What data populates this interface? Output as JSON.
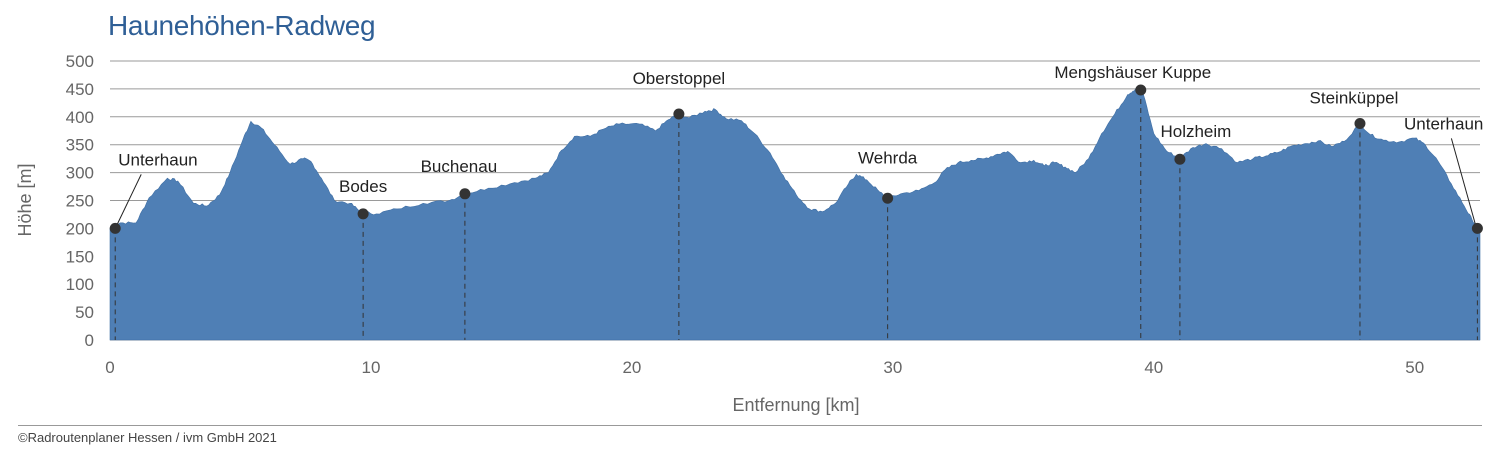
{
  "chart_data": {
    "type": "area",
    "title": "Haunehöhen-Radweg",
    "xlabel": "Entfernung [km]",
    "ylabel": "Höhe [m]",
    "xlim": [
      0,
      52.5
    ],
    "ylim": [
      0,
      500
    ],
    "x_ticks": [
      0,
      10,
      20,
      30,
      40,
      50
    ],
    "y_ticks": [
      0,
      50,
      100,
      150,
      200,
      250,
      300,
      350,
      400,
      450,
      500
    ],
    "grid": "horizontal",
    "fill_color": "#4f7fb5",
    "profile": [
      [
        0,
        200
      ],
      [
        0.4,
        210
      ],
      [
        1.0,
        210
      ],
      [
        1.5,
        255
      ],
      [
        2.2,
        290
      ],
      [
        2.6,
        285
      ],
      [
        3.2,
        245
      ],
      [
        3.7,
        240
      ],
      [
        4.2,
        260
      ],
      [
        4.6,
        300
      ],
      [
        5.1,
        360
      ],
      [
        5.4,
        392
      ],
      [
        5.8,
        380
      ],
      [
        6.3,
        350
      ],
      [
        6.9,
        315
      ],
      [
        7.4,
        325
      ],
      [
        7.7,
        320
      ],
      [
        8.1,
        290
      ],
      [
        8.6,
        250
      ],
      [
        9.2,
        245
      ],
      [
        9.6,
        230
      ],
      [
        10.2,
        226
      ],
      [
        11.0,
        235
      ],
      [
        12.0,
        245
      ],
      [
        13.0,
        250
      ],
      [
        13.6,
        262
      ],
      [
        14.5,
        272
      ],
      [
        15.5,
        282
      ],
      [
        16.3,
        290
      ],
      [
        16.8,
        300
      ],
      [
        17.3,
        340
      ],
      [
        17.8,
        365
      ],
      [
        18.4,
        365
      ],
      [
        18.9,
        378
      ],
      [
        19.5,
        387
      ],
      [
        20.3,
        387
      ],
      [
        20.9,
        375
      ],
      [
        21.4,
        395
      ],
      [
        21.8,
        405
      ],
      [
        22.2,
        398
      ],
      [
        22.8,
        410
      ],
      [
        23.2,
        413
      ],
      [
        23.6,
        397
      ],
      [
        24.2,
        393
      ],
      [
        24.7,
        370
      ],
      [
        25.3,
        335
      ],
      [
        25.8,
        295
      ],
      [
        26.3,
        260
      ],
      [
        26.8,
        235
      ],
      [
        27.3,
        230
      ],
      [
        27.8,
        245
      ],
      [
        28.3,
        280
      ],
      [
        28.6,
        297
      ],
      [
        29.0,
        287
      ],
      [
        29.5,
        265
      ],
      [
        29.8,
        254
      ],
      [
        30.3,
        262
      ],
      [
        31.0,
        268
      ],
      [
        31.6,
        282
      ],
      [
        32.0,
        305
      ],
      [
        32.5,
        318
      ],
      [
        33.0,
        322
      ],
      [
        33.5,
        325
      ],
      [
        34.0,
        333
      ],
      [
        34.4,
        338
      ],
      [
        34.9,
        318
      ],
      [
        35.4,
        322
      ],
      [
        35.8,
        312
      ],
      [
        36.2,
        318
      ],
      [
        36.6,
        310
      ],
      [
        37.0,
        300
      ],
      [
        37.5,
        325
      ],
      [
        38.0,
        370
      ],
      [
        38.5,
        405
      ],
      [
        39.0,
        440
      ],
      [
        39.3,
        450
      ],
      [
        39.6,
        440
      ],
      [
        40.0,
        370
      ],
      [
        40.5,
        338
      ],
      [
        41.0,
        326
      ],
      [
        41.5,
        345
      ],
      [
        42.0,
        352
      ],
      [
        42.6,
        343
      ],
      [
        43.2,
        318
      ],
      [
        43.8,
        325
      ],
      [
        44.3,
        330
      ],
      [
        44.8,
        337
      ],
      [
        45.3,
        348
      ],
      [
        45.8,
        352
      ],
      [
        46.3,
        357
      ],
      [
        46.8,
        347
      ],
      [
        47.3,
        356
      ],
      [
        47.9,
        388
      ],
      [
        48.3,
        368
      ],
      [
        48.8,
        358
      ],
      [
        49.4,
        355
      ],
      [
        50.0,
        362
      ],
      [
        50.4,
        350
      ],
      [
        50.9,
        320
      ],
      [
        51.4,
        280
      ],
      [
        51.9,
        240
      ],
      [
        52.2,
        215
      ],
      [
        52.5,
        200
      ]
    ],
    "waypoints": [
      {
        "name": "Unterhaun",
        "km": 0.2,
        "alt": 200
      },
      {
        "name": "Bodes",
        "km": 9.7,
        "alt": 226
      },
      {
        "name": "Buchenau",
        "km": 13.6,
        "alt": 262
      },
      {
        "name": "Oberstoppel",
        "km": 21.8,
        "alt": 405
      },
      {
        "name": "Wehrda",
        "km": 29.8,
        "alt": 254
      },
      {
        "name": "Mengshäuser Kuppe",
        "km": 39.5,
        "alt": 448
      },
      {
        "name": "Holzheim",
        "km": 41.0,
        "alt": 324
      },
      {
        "name": "Steinküppel",
        "km": 47.9,
        "alt": 388
      },
      {
        "name": "Unterhaun",
        "km": 52.4,
        "alt": 200
      }
    ]
  },
  "footer": {
    "copyright": "©Radroutenplaner Hessen / ivm GmbH 2021"
  }
}
